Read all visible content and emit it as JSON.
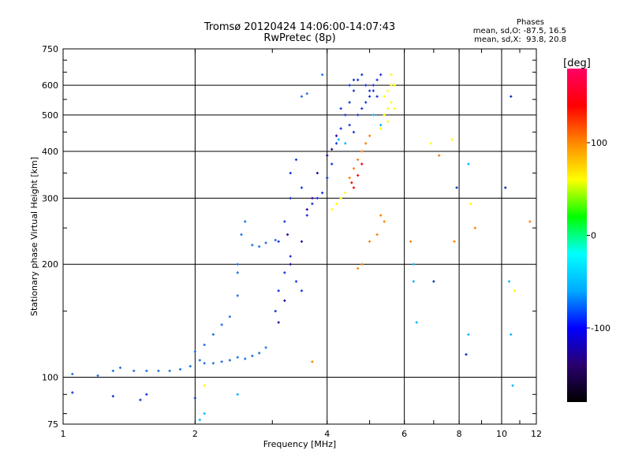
{
  "header": {
    "title": "Tromsø 20120424 14:06:00-14:07:43",
    "subtitle": "RwPretec (8p)"
  },
  "phases_box": {
    "title": "Phases",
    "line_o": "mean, sd,O: -87.5, 16.5",
    "line_x": "mean, sd,X:  93.8, 20.8"
  },
  "chart_data": {
    "type": "scatter",
    "title": "Tromsø 20120424 14:06:00-14:07:43",
    "subtitle": "RwPretec (8p)",
    "xlabel": "Frequency [MHz]",
    "ylabel": "Stationary phase Virtual Height [km]",
    "x_scale": "log",
    "y_scale": "log",
    "xlim": [
      1,
      12
    ],
    "ylim": [
      75,
      750
    ],
    "x_ticks": [
      1,
      2,
      4,
      6,
      8,
      10,
      12
    ],
    "y_ticks": [
      75,
      100,
      200,
      300,
      400,
      500,
      600,
      750
    ],
    "grid": true,
    "colorbar": {
      "label": "[deg]",
      "range": [
        -180,
        180
      ],
      "ticks": [
        -100,
        0,
        100
      ],
      "colors": [
        "#000000",
        "#2a006e",
        "#0000ff",
        "#00aaff",
        "#00ffff",
        "#00ff00",
        "#ffff00",
        "#ff8800",
        "#ff0000",
        "#ff0066"
      ]
    },
    "series": [
      {
        "color": "#1a6ee0",
        "points": [
          [
            1.05,
            102
          ],
          [
            1.2,
            101
          ],
          [
            1.3,
            104
          ],
          [
            1.35,
            106
          ],
          [
            1.45,
            104
          ],
          [
            1.55,
            104
          ],
          [
            1.65,
            104
          ],
          [
            1.75,
            104
          ],
          [
            1.85,
            105
          ],
          [
            1.95,
            107
          ],
          [
            2.05,
            111
          ],
          [
            2.1,
            109
          ],
          [
            2.2,
            109
          ],
          [
            2.3,
            110
          ],
          [
            2.4,
            111
          ],
          [
            2.5,
            113
          ],
          [
            2.6,
            112
          ],
          [
            2.7,
            114
          ],
          [
            2.8,
            116
          ],
          [
            2.9,
            120
          ],
          [
            2.0,
            117
          ],
          [
            2.1,
            122
          ],
          [
            2.2,
            130
          ],
          [
            2.3,
            138
          ],
          [
            2.4,
            145
          ],
          [
            2.5,
            165
          ],
          [
            2.5,
            190
          ],
          [
            2.5,
            200
          ],
          [
            2.55,
            240
          ],
          [
            2.6,
            260
          ],
          [
            2.7,
            225
          ],
          [
            2.8,
            223
          ],
          [
            2.9,
            228
          ],
          [
            3.05,
            232
          ],
          [
            3.5,
            560
          ],
          [
            3.6,
            570
          ],
          [
            3.9,
            640
          ]
        ]
      },
      {
        "color": "#1432dc",
        "points": [
          [
            1.05,
            91
          ],
          [
            1.3,
            89
          ],
          [
            1.5,
            87
          ],
          [
            1.55,
            90
          ],
          [
            2.0,
            88
          ],
          [
            3.05,
            150
          ],
          [
            3.1,
            170
          ],
          [
            3.2,
            190
          ],
          [
            3.3,
            210
          ],
          [
            3.4,
            180
          ],
          [
            3.5,
            170
          ],
          [
            3.1,
            230
          ],
          [
            3.2,
            260
          ],
          [
            3.3,
            300
          ],
          [
            3.3,
            350
          ],
          [
            3.4,
            380
          ],
          [
            3.5,
            320
          ],
          [
            3.6,
            270
          ],
          [
            3.7,
            290
          ],
          [
            3.8,
            300
          ],
          [
            3.9,
            310
          ],
          [
            4.0,
            340
          ],
          [
            4.1,
            370
          ],
          [
            4.2,
            420
          ],
          [
            4.3,
            460
          ],
          [
            4.4,
            500
          ],
          [
            4.5,
            540
          ],
          [
            4.6,
            580
          ],
          [
            4.7,
            620
          ],
          [
            4.8,
            640
          ],
          [
            4.9,
            600
          ],
          [
            5.0,
            580
          ],
          [
            5.1,
            600
          ],
          [
            5.2,
            620
          ],
          [
            5.3,
            640
          ],
          [
            4.5,
            470
          ],
          [
            4.6,
            450
          ],
          [
            4.7,
            500
          ],
          [
            4.8,
            520
          ],
          [
            4.9,
            540
          ],
          [
            5.0,
            560
          ],
          [
            5.1,
            580
          ],
          [
            5.2,
            560
          ],
          [
            4.3,
            520
          ],
          [
            4.5,
            600
          ],
          [
            4.6,
            620
          ]
        ]
      },
      {
        "color": "#3200a0",
        "points": [
          [
            3.1,
            140
          ],
          [
            3.2,
            160
          ],
          [
            3.3,
            200
          ],
          [
            3.25,
            240
          ],
          [
            3.5,
            230
          ],
          [
            3.6,
            280
          ],
          [
            3.7,
            300
          ],
          [
            3.8,
            350
          ],
          [
            4.0,
            390
          ],
          [
            4.1,
            405
          ],
          [
            4.2,
            440
          ]
        ]
      },
      {
        "color": "#00b4ff",
        "points": [
          [
            2.05,
            77
          ],
          [
            2.1,
            80
          ],
          [
            2.5,
            90
          ],
          [
            4.25,
            430
          ],
          [
            4.4,
            420
          ],
          [
            5.1,
            500
          ],
          [
            5.3,
            470
          ],
          [
            6.3,
            180
          ],
          [
            6.3,
            200
          ],
          [
            6.4,
            140
          ],
          [
            8.4,
            130
          ],
          [
            8.4,
            370
          ],
          [
            10.4,
            180
          ],
          [
            10.5,
            130
          ],
          [
            10.6,
            95
          ]
        ]
      },
      {
        "color": "#ffff00",
        "points": [
          [
            2.1,
            95
          ],
          [
            4.1,
            280
          ],
          [
            4.2,
            290
          ],
          [
            4.3,
            300
          ],
          [
            4.4,
            310
          ],
          [
            5.4,
            560
          ],
          [
            5.5,
            580
          ],
          [
            5.6,
            600
          ],
          [
            5.4,
            500
          ],
          [
            5.5,
            520
          ],
          [
            5.6,
            540
          ],
          [
            5.3,
            460
          ],
          [
            5.5,
            480
          ],
          [
            5.7,
            520
          ],
          [
            5.7,
            600
          ],
          [
            5.6,
            640
          ],
          [
            6.9,
            420
          ],
          [
            7.7,
            430
          ],
          [
            8.5,
            290
          ],
          [
            10.7,
            170
          ]
        ]
      },
      {
        "color": "#ff7f00",
        "points": [
          [
            3.7,
            110
          ],
          [
            4.5,
            340
          ],
          [
            4.6,
            360
          ],
          [
            4.7,
            380
          ],
          [
            4.8,
            400
          ],
          [
            4.9,
            420
          ],
          [
            5.0,
            440
          ],
          [
            5.3,
            270
          ],
          [
            4.7,
            195
          ],
          [
            4.8,
            200
          ],
          [
            5.0,
            230
          ],
          [
            5.2,
            240
          ],
          [
            5.4,
            260
          ],
          [
            6.2,
            230
          ],
          [
            7.2,
            390
          ],
          [
            7.8,
            230
          ],
          [
            8.7,
            250
          ],
          [
            11.6,
            260
          ]
        ]
      },
      {
        "color": "#ff0000",
        "points": [
          [
            4.6,
            320
          ],
          [
            4.7,
            345
          ],
          [
            4.55,
            330
          ],
          [
            4.8,
            370
          ]
        ]
      },
      {
        "color": "#0032b4",
        "points": [
          [
            7.0,
            180
          ],
          [
            7.9,
            320
          ],
          [
            8.3,
            115
          ],
          [
            10.2,
            320
          ],
          [
            10.5,
            560
          ]
        ]
      }
    ]
  }
}
